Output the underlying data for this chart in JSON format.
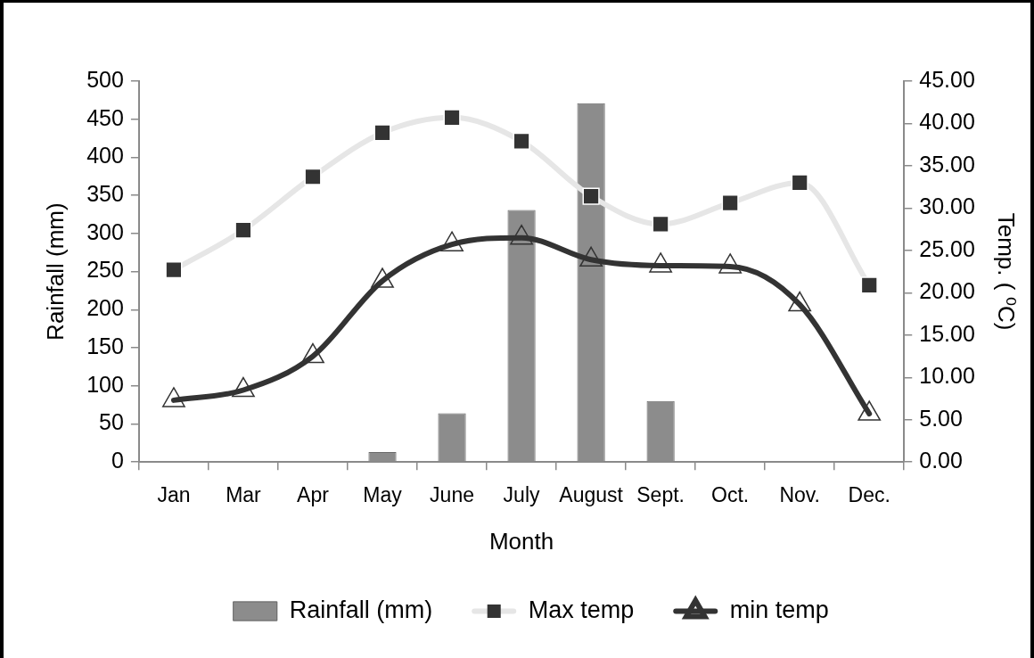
{
  "chart_data": {
    "type": "bar",
    "categories": [
      "Jan",
      "Mar",
      "Apr",
      "May",
      "June",
      "July",
      "August",
      "Sept.",
      "Oct.",
      "Nov.",
      "Dec."
    ],
    "xlabel": "Month",
    "ylabel": "Rainfall (mm)",
    "y2label": "Temp. ( ⁰C)",
    "series": [
      {
        "name": "Rainfall (mm)",
        "color": "#8c8c8c",
        "values": [
          0,
          0,
          0,
          13,
          64,
          331,
          471,
          80,
          0,
          0,
          0
        ]
      },
      {
        "name": "Max temp",
        "type": "line",
        "axis": "y2",
        "marker": "square",
        "color": "#e6e6e6",
        "values": [
          22.7,
          27.4,
          33.7,
          38.9,
          40.7,
          37.9,
          31.4,
          28.1,
          30.6,
          33.0,
          20.9
        ]
      },
      {
        "name": "min temp",
        "type": "line",
        "axis": "y2",
        "marker": "triangle",
        "color": "#333333",
        "values": [
          7.3,
          8.5,
          12.5,
          21.4,
          25.7,
          26.5,
          23.9,
          23.2,
          23.1,
          18.6,
          5.7
        ]
      }
    ],
    "ylim": [
      0,
      500
    ],
    "yticks": [
      0,
      50,
      100,
      150,
      200,
      250,
      300,
      350,
      400,
      450,
      500
    ],
    "y2lim": [
      0,
      45
    ],
    "y2ticks": [
      {
        "value": 0,
        "label": "0.00"
      },
      {
        "value": 5,
        "label": "5.00"
      },
      {
        "value": 10,
        "label": "10.00"
      },
      {
        "value": 15,
        "label": "15.00"
      },
      {
        "value": 20,
        "label": "20.00"
      },
      {
        "value": 25,
        "label": "25.00"
      },
      {
        "value": 30,
        "label": "30.00"
      },
      {
        "value": 35,
        "label": "35.00"
      },
      {
        "value": 40,
        "label": "40.00"
      },
      {
        "value": 45,
        "label": "45.00"
      }
    ],
    "legend": "bottom"
  }
}
